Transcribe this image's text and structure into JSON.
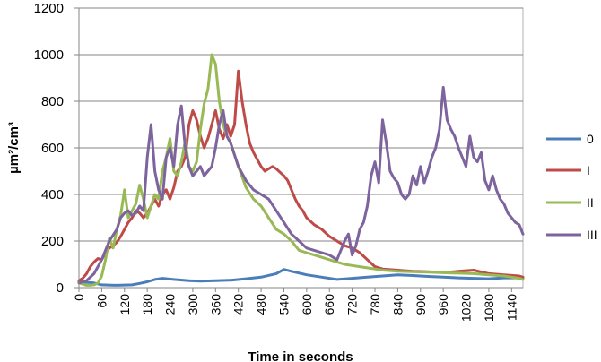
{
  "chart_data": {
    "type": "line",
    "title": "",
    "xlabel": "Time in seconds",
    "ylabel": "µm²/cm³",
    "xlim": [
      0,
      1170
    ],
    "ylim": [
      0,
      1200
    ],
    "y_ticks": [
      0,
      200,
      400,
      600,
      800,
      1000,
      1200
    ],
    "y_tick_labels": [
      "0",
      "200",
      "400",
      "600",
      "800",
      "1000",
      "1200"
    ],
    "x_ticks": [
      0,
      60,
      120,
      180,
      240,
      300,
      360,
      420,
      480,
      540,
      600,
      660,
      720,
      780,
      840,
      900,
      960,
      1020,
      1080,
      1140
    ],
    "x_tick_labels": [
      "0",
      "60",
      "120",
      "180",
      "240",
      "300",
      "360",
      "420",
      "480",
      "540",
      "600",
      "660",
      "720",
      "780",
      "840",
      "900",
      "960",
      "1020",
      "1080",
      "1140"
    ],
    "grid": "horizontal",
    "legend_position": "right",
    "series": [
      {
        "name": "0",
        "color": "#4a7ebb",
        "x": [
          0,
          40,
          60,
          100,
          140,
          160,
          180,
          200,
          220,
          250,
          290,
          320,
          360,
          400,
          440,
          480,
          520,
          540,
          560,
          600,
          640,
          680,
          720,
          760,
          800,
          840,
          880,
          920,
          960,
          1000,
          1040,
          1080,
          1120,
          1160,
          1170
        ],
        "y": [
          25,
          20,
          12,
          10,
          12,
          18,
          25,
          35,
          40,
          35,
          30,
          28,
          30,
          32,
          38,
          45,
          60,
          78,
          70,
          55,
          45,
          35,
          40,
          45,
          50,
          55,
          52,
          48,
          45,
          42,
          40,
          38,
          42,
          42,
          40
        ]
      },
      {
        "name": "I",
        "color": "#be4b48",
        "x": [
          0,
          10,
          20,
          30,
          40,
          50,
          60,
          70,
          80,
          90,
          100,
          110,
          120,
          130,
          140,
          150,
          160,
          170,
          180,
          190,
          200,
          210,
          220,
          230,
          240,
          250,
          260,
          270,
          280,
          290,
          300,
          310,
          320,
          330,
          340,
          350,
          360,
          370,
          380,
          390,
          400,
          410,
          420,
          430,
          440,
          450,
          460,
          470,
          480,
          490,
          500,
          510,
          520,
          530,
          540,
          550,
          560,
          570,
          580,
          590,
          600,
          620,
          640,
          660,
          680,
          700,
          720,
          740,
          760,
          780,
          800,
          840,
          880,
          920,
          960,
          1000,
          1040,
          1080,
          1120,
          1160,
          1170
        ],
        "y": [
          30,
          40,
          60,
          90,
          110,
          125,
          120,
          150,
          170,
          180,
          195,
          220,
          250,
          280,
          300,
          330,
          320,
          300,
          320,
          350,
          380,
          350,
          400,
          420,
          380,
          430,
          500,
          520,
          560,
          700,
          760,
          720,
          650,
          600,
          640,
          700,
          760,
          680,
          640,
          700,
          650,
          700,
          930,
          800,
          700,
          620,
          580,
          550,
          520,
          500,
          510,
          520,
          510,
          495,
          480,
          460,
          420,
          380,
          350,
          330,
          300,
          270,
          250,
          220,
          200,
          180,
          170,
          150,
          120,
          90,
          80,
          75,
          70,
          68,
          65,
          70,
          75,
          60,
          55,
          50,
          45
        ]
      },
      {
        "name": "II",
        "color": "#98b954",
        "x": [
          0,
          10,
          20,
          30,
          40,
          50,
          60,
          70,
          80,
          90,
          100,
          110,
          120,
          130,
          140,
          150,
          160,
          170,
          180,
          190,
          200,
          210,
          220,
          230,
          240,
          250,
          260,
          270,
          280,
          290,
          300,
          310,
          320,
          330,
          340,
          350,
          360,
          370,
          380,
          390,
          400,
          420,
          440,
          460,
          480,
          500,
          520,
          540,
          560,
          580,
          600,
          620,
          640,
          660,
          680,
          700,
          720,
          740,
          760,
          780,
          800,
          840,
          880,
          920,
          960,
          1000,
          1040,
          1080,
          1120,
          1160,
          1170
        ],
        "y": [
          20,
          15,
          10,
          10,
          12,
          20,
          50,
          120,
          210,
          170,
          250,
          310,
          420,
          300,
          330,
          360,
          440,
          380,
          300,
          350,
          400,
          380,
          500,
          560,
          640,
          500,
          480,
          540,
          630,
          520,
          500,
          540,
          680,
          790,
          850,
          1000,
          960,
          800,
          700,
          650,
          620,
          520,
          430,
          380,
          350,
          300,
          250,
          230,
          200,
          160,
          150,
          140,
          130,
          120,
          110,
          100,
          95,
          90,
          85,
          80,
          75,
          70,
          68,
          66,
          64,
          62,
          60,
          55,
          50,
          40,
          35
        ]
      },
      {
        "name": "III",
        "color": "#7e649e",
        "x": [
          0,
          20,
          40,
          60,
          80,
          100,
          110,
          120,
          130,
          140,
          150,
          160,
          170,
          180,
          190,
          200,
          210,
          220,
          230,
          240,
          250,
          260,
          270,
          280,
          290,
          300,
          310,
          320,
          330,
          340,
          350,
          360,
          370,
          380,
          390,
          400,
          420,
          440,
          460,
          480,
          500,
          520,
          540,
          560,
          580,
          600,
          620,
          640,
          660,
          680,
          700,
          710,
          720,
          730,
          740,
          750,
          760,
          770,
          780,
          790,
          800,
          810,
          820,
          830,
          840,
          850,
          860,
          870,
          880,
          890,
          900,
          910,
          920,
          930,
          940,
          950,
          960,
          970,
          980,
          990,
          1000,
          1010,
          1020,
          1030,
          1040,
          1050,
          1060,
          1070,
          1080,
          1090,
          1100,
          1110,
          1120,
          1130,
          1140,
          1150,
          1160,
          1170
        ],
        "y": [
          20,
          30,
          60,
          120,
          200,
          250,
          300,
          320,
          330,
          310,
          320,
          350,
          330,
          560,
          700,
          500,
          420,
          380,
          560,
          600,
          520,
          700,
          780,
          600,
          520,
          480,
          500,
          520,
          480,
          500,
          520,
          600,
          700,
          760,
          650,
          620,
          520,
          460,
          420,
          400,
          380,
          330,
          280,
          230,
          200,
          170,
          160,
          150,
          140,
          120,
          200,
          230,
          140,
          180,
          250,
          280,
          350,
          480,
          540,
          450,
          720,
          620,
          500,
          470,
          450,
          400,
          380,
          400,
          480,
          440,
          520,
          450,
          500,
          560,
          600,
          680,
          860,
          720,
          680,
          650,
          600,
          560,
          520,
          650,
          560,
          540,
          580,
          460,
          420,
          480,
          420,
          380,
          360,
          320,
          300,
          280,
          270,
          230
        ]
      }
    ]
  }
}
